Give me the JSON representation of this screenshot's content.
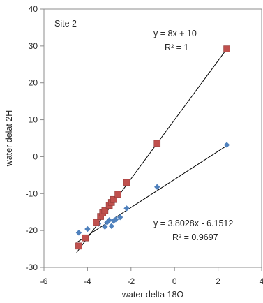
{
  "chart_data": {
    "type": "scatter",
    "title": "",
    "xlabel": "water delta 18O",
    "ylabel": "water delat 2H",
    "xlim": [
      -6,
      4
    ],
    "ylim": [
      -30,
      40
    ],
    "xticks": [
      -6,
      -4,
      -2,
      0,
      2,
      4
    ],
    "yticks": [
      -30,
      -20,
      -10,
      0,
      10,
      20,
      30,
      40
    ],
    "grid": false,
    "legend": "none",
    "annotations": {
      "site": "Site 2",
      "red_equation": "y = 8x + 10",
      "red_r2": "R² = 1",
      "blue_equation": "y = 3.8028x - 6.1512",
      "blue_r2": "R² = 0.9697"
    },
    "series": [
      {
        "color": "#C0504D",
        "marker": "square",
        "x": [
          -4.4,
          -4.1,
          -3.6,
          -3.4,
          -3.3,
          -3.2,
          -3.0,
          -2.9,
          -2.8,
          -2.6,
          -2.2,
          -0.8,
          2.4
        ],
        "y": [
          -24.2,
          -22.0,
          -17.8,
          -16.2,
          -15.2,
          -14.6,
          -13.2,
          -12.4,
          -11.6,
          -10.2,
          -7.0,
          3.6,
          29.2
        ],
        "trendline": {
          "slope": 8,
          "intercept": 10,
          "x_range": [
            -4.5,
            2.4
          ]
        }
      },
      {
        "color": "#4F81BD",
        "marker": "diamond",
        "x": [
          -4.4,
          -4.0,
          -4.1,
          -3.5,
          -3.2,
          -3.1,
          -3.0,
          -2.9,
          -2.8,
          -2.7,
          -2.5,
          -2.2,
          -0.8,
          2.4
        ],
        "y": [
          -20.6,
          -19.6,
          -22.2,
          -18.2,
          -19.0,
          -17.8,
          -17.2,
          -18.8,
          -17.4,
          -17.0,
          -16.4,
          -14.0,
          -8.2,
          3.2
        ],
        "trendline": {
          "slope": 3.8028,
          "intercept": -6.1512,
          "x_range": [
            -4.5,
            2.4
          ]
        }
      }
    ]
  }
}
